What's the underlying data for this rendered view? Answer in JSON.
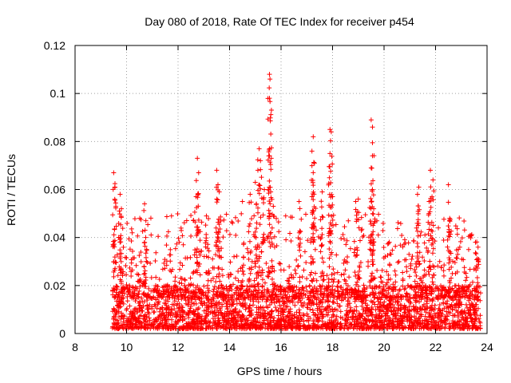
{
  "chart_data": {
    "type": "scatter",
    "title": "Day 080 of 2018, Rate Of TEC Index for receiver p454",
    "xlabel": "GPS time / hours",
    "ylabel": "ROTI / TECUs",
    "xlim": [
      8,
      24
    ],
    "ylim": [
      0,
      0.12
    ],
    "x_ticks": [
      8,
      10,
      12,
      14,
      16,
      18,
      20,
      22,
      24
    ],
    "x_tick_labels": [
      "8",
      "10",
      "12",
      "14",
      "16",
      "18",
      "20",
      "22",
      "24"
    ],
    "y_ticks": [
      0,
      0.02,
      0.04,
      0.06,
      0.08,
      0.1,
      0.12
    ],
    "y_tick_labels": [
      "0",
      "0.02",
      "0.04",
      "0.06",
      "0.08",
      "0.1",
      "0.12"
    ],
    "grid": true,
    "marker": "+",
    "marker_color": "#ff0000",
    "data_span_hours": [
      9.45,
      23.75
    ],
    "baseline_roti_range": [
      0.002,
      0.02
    ],
    "notable_points": [
      {
        "x": 9.5,
        "y": 0.067
      },
      {
        "x": 9.55,
        "y": 0.061
      },
      {
        "x": 9.75,
        "y": 0.058
      },
      {
        "x": 9.8,
        "y": 0.052
      },
      {
        "x": 10.7,
        "y": 0.054
      },
      {
        "x": 10.75,
        "y": 0.047
      },
      {
        "x": 12.75,
        "y": 0.073
      },
      {
        "x": 12.8,
        "y": 0.067
      },
      {
        "x": 12.7,
        "y": 0.057
      },
      {
        "x": 13.1,
        "y": 0.049
      },
      {
        "x": 13.5,
        "y": 0.068
      },
      {
        "x": 13.55,
        "y": 0.062
      },
      {
        "x": 13.6,
        "y": 0.059
      },
      {
        "x": 14.5,
        "y": 0.055
      },
      {
        "x": 14.8,
        "y": 0.058
      },
      {
        "x": 15.0,
        "y": 0.063
      },
      {
        "x": 15.1,
        "y": 0.068
      },
      {
        "x": 15.15,
        "y": 0.077
      },
      {
        "x": 15.2,
        "y": 0.072
      },
      {
        "x": 15.35,
        "y": 0.06
      },
      {
        "x": 15.55,
        "y": 0.108
      },
      {
        "x": 15.57,
        "y": 0.106
      },
      {
        "x": 15.55,
        "y": 0.098
      },
      {
        "x": 15.55,
        "y": 0.077
      },
      {
        "x": 15.6,
        "y": 0.059
      },
      {
        "x": 15.7,
        "y": 0.053
      },
      {
        "x": 16.7,
        "y": 0.055
      },
      {
        "x": 17.2,
        "y": 0.076
      },
      {
        "x": 17.25,
        "y": 0.082
      },
      {
        "x": 17.3,
        "y": 0.071
      },
      {
        "x": 17.2,
        "y": 0.057
      },
      {
        "x": 17.6,
        "y": 0.059
      },
      {
        "x": 17.9,
        "y": 0.085
      },
      {
        "x": 17.95,
        "y": 0.084
      },
      {
        "x": 17.9,
        "y": 0.075
      },
      {
        "x": 18.0,
        "y": 0.057
      },
      {
        "x": 18.9,
        "y": 0.055
      },
      {
        "x": 19.0,
        "y": 0.056
      },
      {
        "x": 19.5,
        "y": 0.089
      },
      {
        "x": 19.55,
        "y": 0.086
      },
      {
        "x": 19.5,
        "y": 0.069
      },
      {
        "x": 19.55,
        "y": 0.06
      },
      {
        "x": 19.6,
        "y": 0.052
      },
      {
        "x": 21.3,
        "y": 0.058
      },
      {
        "x": 21.35,
        "y": 0.061
      },
      {
        "x": 21.8,
        "y": 0.068
      },
      {
        "x": 21.9,
        "y": 0.064
      },
      {
        "x": 21.75,
        "y": 0.055
      },
      {
        "x": 22.5,
        "y": 0.062
      },
      {
        "x": 22.55,
        "y": 0.048
      },
      {
        "x": 23.55,
        "y": 0.038
      },
      {
        "x": 23.65,
        "y": 0.036
      }
    ]
  }
}
